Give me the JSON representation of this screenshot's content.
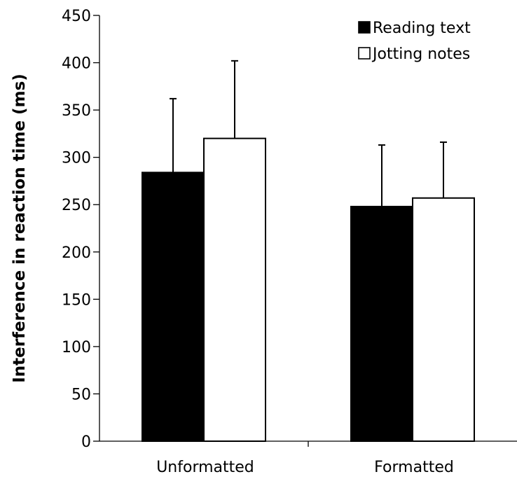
{
  "chart_data": {
    "type": "bar",
    "title": "",
    "xlabel": "",
    "ylabel": "Interference in reaction time (ms)",
    "ylim": [
      0,
      450
    ],
    "yticks": [
      "0",
      "50",
      "100",
      "150",
      "200",
      "250",
      "300",
      "350",
      "400",
      "450"
    ],
    "grid": false,
    "legend_position": "top-right",
    "categories": [
      "Unformatted",
      "Formatted"
    ],
    "series": [
      {
        "name": "Reading text",
        "color": "#000000",
        "values": [
          284,
          248
        ],
        "error_upper": [
          78,
          65
        ]
      },
      {
        "name": "Jotting notes",
        "color": "#ffffff",
        "values": [
          320,
          257
        ],
        "error_upper": [
          82,
          59
        ]
      }
    ]
  }
}
